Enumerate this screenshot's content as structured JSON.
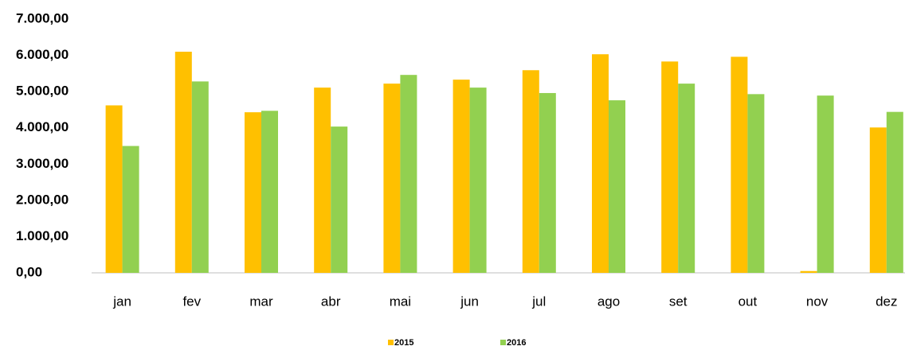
{
  "chart_data": {
    "type": "bar",
    "categories": [
      "jan",
      "fev",
      "mar",
      "abr",
      "mai",
      "jun",
      "jul",
      "ago",
      "set",
      "out",
      "nov",
      "dez"
    ],
    "series": [
      {
        "name": "2015",
        "color": "#ffc000",
        "values": [
          4620,
          6100,
          4430,
          5110,
          5220,
          5330,
          5590,
          6030,
          5830,
          5960,
          50,
          4010
        ]
      },
      {
        "name": "2016",
        "color": "#92d050",
        "values": [
          3500,
          5280,
          4470,
          4035,
          5460,
          5110,
          4960,
          4760,
          5220,
          4930,
          4890,
          4440
        ]
      }
    ],
    "ylim": [
      0,
      7000
    ],
    "yticks": [
      {
        "value": 0,
        "label": "0,00"
      },
      {
        "value": 1000,
        "label": "1.000,00"
      },
      {
        "value": 2000,
        "label": "2.000,00"
      },
      {
        "value": 3000,
        "label": "3.000,00"
      },
      {
        "value": 4000,
        "label": "4.000,00"
      },
      {
        "value": 5000,
        "label": "5.000,00"
      },
      {
        "value": 6000,
        "label": "6.000,00"
      },
      {
        "value": 7000,
        "label": "7.000,00"
      }
    ],
    "grid": false,
    "legend": "bottom"
  }
}
